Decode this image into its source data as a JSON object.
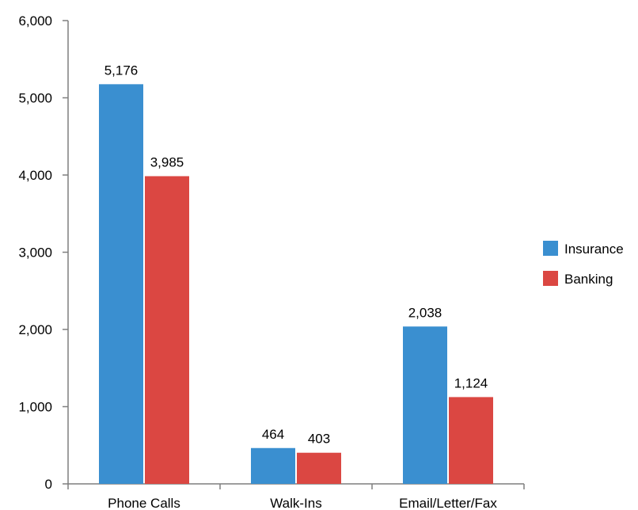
{
  "chart_data": {
    "type": "bar",
    "title": "",
    "xlabel": "",
    "ylabel": "",
    "categories": [
      "Phone Calls",
      "Walk-Ins",
      "Email/Letter/Fax"
    ],
    "series": [
      {
        "name": "Insurance",
        "values": [
          5176,
          464,
          2038
        ],
        "labels": [
          "5,176",
          "464",
          "2,038"
        ],
        "color": "#3a8fd0"
      },
      {
        "name": "Banking",
        "values": [
          3985,
          403,
          1124
        ],
        "labels": [
          "3,985",
          "403",
          "1,124"
        ],
        "color": "#db4742"
      }
    ],
    "ylim": [
      0,
      6000
    ],
    "yticks": [
      0,
      1000,
      2000,
      3000,
      4000,
      5000,
      6000
    ],
    "ytick_labels": [
      "0",
      "1,000",
      "2,000",
      "3,000",
      "4,000",
      "5,000",
      "6,000"
    ],
    "grid": false,
    "legend_position": "right"
  }
}
